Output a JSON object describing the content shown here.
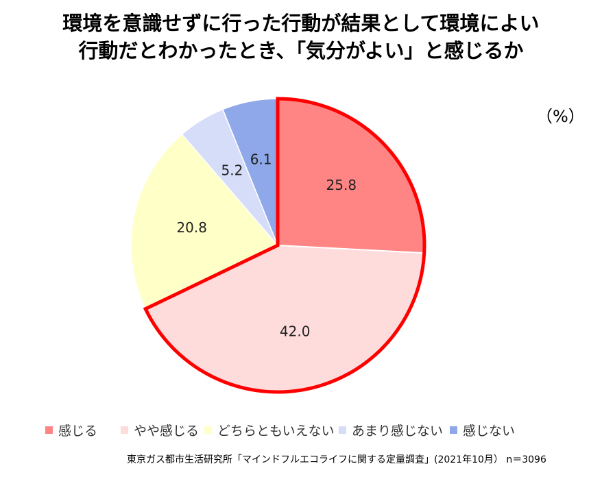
{
  "title_line1": "環境を意識せずに行った行動が結果として環境によい",
  "title_line2": "行動だとわかったとき、「気分がよい」と感じるか",
  "unit_label": "（%）",
  "source": "東京ガス都市生活研究所「マインドフルエコライフに関する定量調査」(2021年10月） n＝3096",
  "chart_data": {
    "type": "pie",
    "title": "環境を意識せずに行った行動が結果として環境によい行動だとわかったとき、「気分がよい」と感じるか",
    "unit": "%",
    "start_angle": "12 o'clock",
    "direction": "clockwise",
    "categories": [
      "感じる",
      "やや感じる",
      "どちらともいえない",
      "あまり感じない",
      "感じない"
    ],
    "values": [
      25.8,
      42.0,
      20.8,
      5.2,
      6.1
    ],
    "labels": [
      "25.8",
      "42.0",
      "20.8",
      "5.2",
      "6.1"
    ],
    "colors": [
      "#ff8585",
      "#ffdcdc",
      "#ffffc8",
      "#d6ddf8",
      "#8ea8ea"
    ],
    "highlight_outline_color": "#ff0000",
    "highlighted_categories": [
      "感じる",
      "やや感じる"
    ],
    "legend_position": "bottom"
  }
}
